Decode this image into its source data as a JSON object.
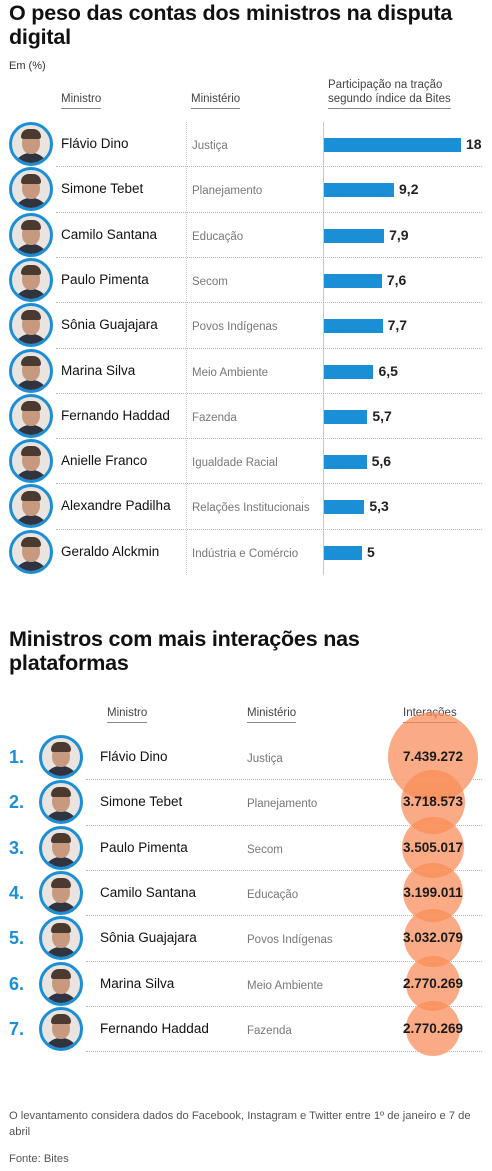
{
  "chart1": {
    "title": "O peso das contas dos ministros na disputa digital",
    "unit": "Em (%)",
    "header_minister": "Ministro",
    "header_ministry": "Ministério",
    "header_value_line1": "Participação na tração",
    "header_value_line2": "segundo índice da Bites",
    "bar_color": "#1b8fd6",
    "avatar_border_color": "#1b8fd6"
  },
  "chart2": {
    "title": "Ministros com mais interações nas plataformas",
    "header_minister": "Ministro",
    "header_ministry": "Ministério",
    "header_value": "Interações",
    "bubble_color": "#f88a56",
    "rank_color": "#1b8fd6"
  },
  "chart_data": [
    {
      "type": "bar",
      "title": "O peso das contas dos ministros na disputa digital",
      "ylabel": "Participação na tração segundo índice da Bites",
      "unit": "Em (%)",
      "categories": [
        "Flávio Dino",
        "Simone Tebet",
        "Camilo Santana",
        "Paulo Pimenta",
        "Sônia Guajajara",
        "Marina Silva",
        "Fernando Haddad",
        "Anielle Franco",
        "Alexandre Padilha",
        "Geraldo Alckmin"
      ],
      "ministries": [
        "Justiça",
        "Planejamento",
        "Educação",
        "Secom",
        "Povos Indígenas",
        "Meio Ambiente",
        "Fazenda",
        "Igualdade Racial",
        "Relações Institucionais",
        "Indústria e Comércio"
      ],
      "values": [
        18,
        9.2,
        7.9,
        7.6,
        7.7,
        6.5,
        5.7,
        5.6,
        5.3,
        5
      ],
      "labels": [
        "18",
        "9,2",
        "7,9",
        "7,6",
        "7,7",
        "6,5",
        "5,7",
        "5,6",
        "5,3",
        "5"
      ],
      "orientation": "horizontal"
    },
    {
      "type": "scatter",
      "title": "Ministros com mais interações nas plataformas",
      "ylabel": "Interações",
      "ranks": [
        "1.",
        "2.",
        "3.",
        "4.",
        "5.",
        "6.",
        "7."
      ],
      "categories": [
        "Flávio Dino",
        "Simone Tebet",
        "Paulo Pimenta",
        "Camilo Santana",
        "Sônia Guajajara",
        "Marina Silva",
        "Fernando Haddad"
      ],
      "ministries": [
        "Justiça",
        "Planejamento",
        "Secom",
        "Educação",
        "Povos Indígenas",
        "Meio Ambiente",
        "Fazenda"
      ],
      "values": [
        7439272,
        3718573,
        3505017,
        3199011,
        3032079,
        2770269,
        2770269
      ],
      "labels": [
        "7.439.272",
        "3.718.573",
        "3.505.017",
        "3.199.011",
        "3.032.079",
        "2.770.269",
        "2.770.269"
      ],
      "encoding": "bubble area"
    }
  ],
  "footer": {
    "note": "O levantamento considera dados do Facebook, Instagram e Twitter entre 1º de janeiro e 7 de abril",
    "source": "Fonte: Bites"
  }
}
